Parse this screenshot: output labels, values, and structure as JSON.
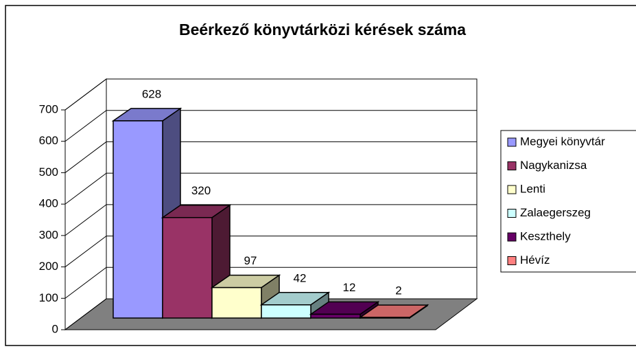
{
  "chart_data": {
    "type": "bar3d",
    "title": "Beérkező könyvtárközi kérések száma",
    "series": [
      {
        "name": "Megyei könyvtár",
        "color": "#9999ff",
        "values": [
          628
        ]
      },
      {
        "name": "Nagykanizsa",
        "color": "#993366",
        "values": [
          320
        ]
      },
      {
        "name": "Lenti",
        "color": "#ffffcc",
        "values": [
          97
        ]
      },
      {
        "name": "Zalaegerszeg",
        "color": "#ccffff",
        "values": [
          42
        ]
      },
      {
        "name": "Keszthely",
        "color": "#660066",
        "values": [
          12
        ]
      },
      {
        "name": "Hévíz",
        "color": "#ff8080",
        "values": [
          2
        ]
      }
    ],
    "ylim": [
      0,
      700
    ],
    "yticks": [
      0,
      100,
      200,
      300,
      400,
      500,
      600,
      700
    ],
    "grid": true,
    "legend": "right"
  }
}
